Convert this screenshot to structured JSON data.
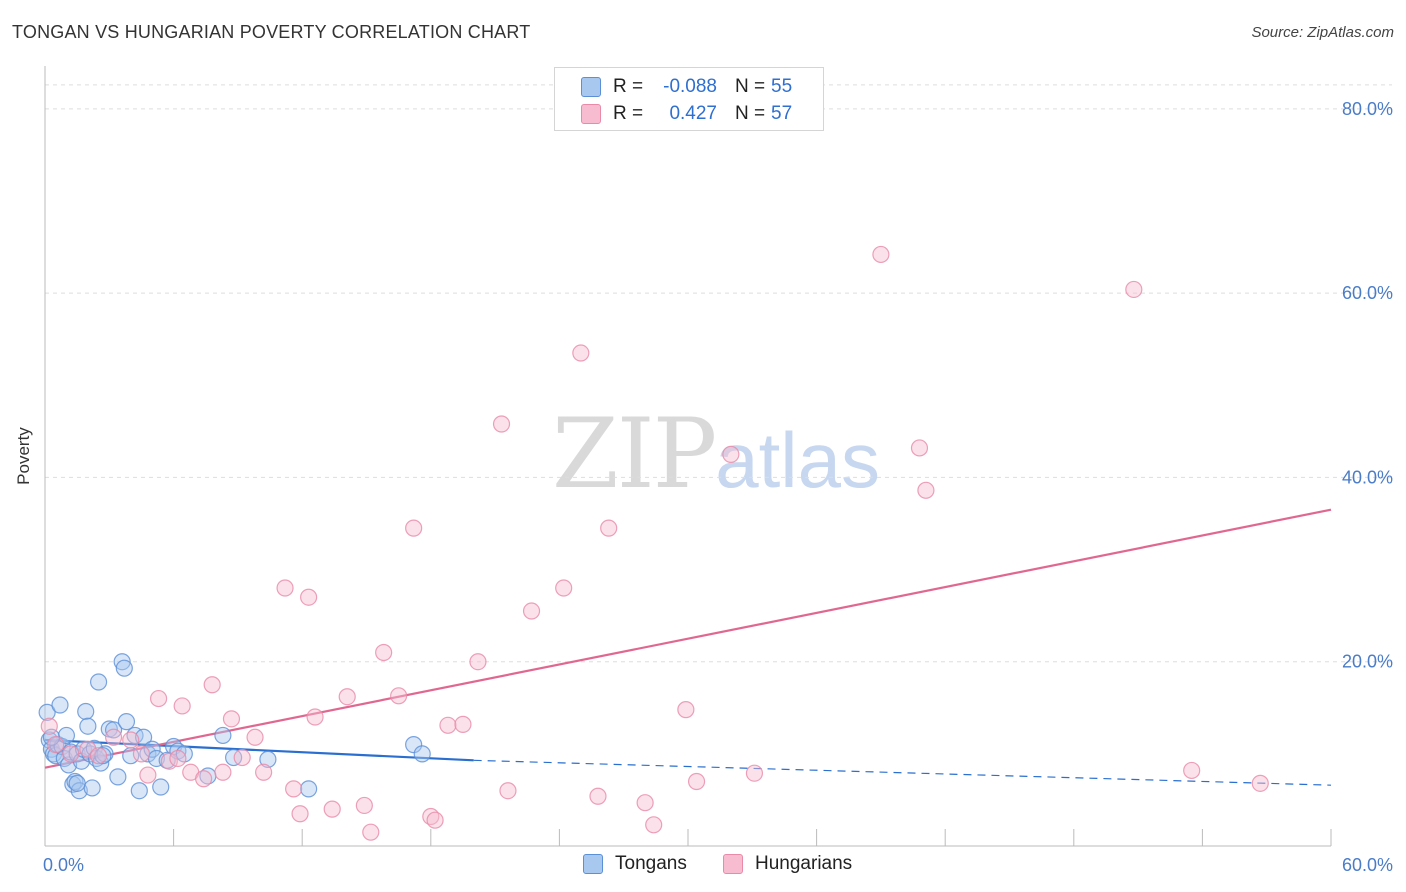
{
  "header": {
    "title": "TONGAN VS HUNGARIAN POVERTY CORRELATION CHART",
    "source": "Source: ZipAtlas.com"
  },
  "legend": {
    "r_label": "R =",
    "n_label": "N =",
    "rows": [
      {
        "name": "Tongans",
        "r": "-0.088",
        "n": "55"
      },
      {
        "name": "Hungarians",
        "r": "0.427",
        "n": "57"
      }
    ]
  },
  "watermark": {
    "zip": "ZIP",
    "atlas": "atlas"
  },
  "colors": {
    "tongans_fill": "#a8c8f0",
    "tongans_stroke": "#5b8fd6",
    "tongans_line": "#2a6fcf",
    "hungarians_fill": "#f7bcd0",
    "hungarians_stroke": "#e88aa8",
    "hungarians_line": "#e06890",
    "axis_text": "#4a7cc7",
    "grid": "#dddddd"
  },
  "chart_data": {
    "type": "scatter",
    "title": "TONGAN VS HUNGARIAN POVERTY CORRELATION CHART",
    "xlabel": "",
    "ylabel": "Poverty",
    "xlim": [
      0,
      60
    ],
    "ylim": [
      0,
      84
    ],
    "x_tick_labels": [
      {
        "value": 0,
        "label": "0.0%"
      },
      {
        "value": 60,
        "label": "60.0%"
      }
    ],
    "y_tick_labels": [
      {
        "value": 20,
        "label": "20.0%"
      },
      {
        "value": 40,
        "label": "40.0%"
      },
      {
        "value": 60,
        "label": "60.0%"
      },
      {
        "value": 80,
        "label": "80.0%"
      }
    ],
    "x_minor_ticks": [
      0,
      6,
      12,
      18,
      24,
      30,
      36,
      42,
      48,
      54,
      60
    ],
    "grid": true,
    "legend_position": "top-center",
    "series": [
      {
        "name": "Tongans",
        "trend": {
          "x0": 0,
          "y0": 11.5,
          "x1": 20,
          "y1": 9.3,
          "dash_to_x": 60,
          "dash_to_y": 6.6
        },
        "points": [
          [
            0.1,
            14.5
          ],
          [
            0.2,
            11.5
          ],
          [
            0.3,
            10.5
          ],
          [
            0.4,
            10.0
          ],
          [
            0.5,
            9.8
          ],
          [
            0.6,
            11.0
          ],
          [
            0.7,
            15.3
          ],
          [
            0.8,
            10.8
          ],
          [
            0.9,
            9.5
          ],
          [
            1.0,
            12.0
          ],
          [
            1.1,
            8.8
          ],
          [
            1.2,
            10.2
          ],
          [
            1.3,
            6.7
          ],
          [
            1.4,
            7.0
          ],
          [
            1.5,
            10.0
          ],
          [
            1.6,
            6.0
          ],
          [
            1.7,
            9.2
          ],
          [
            1.8,
            10.5
          ],
          [
            1.9,
            14.6
          ],
          [
            2.0,
            13.0
          ],
          [
            2.1,
            10.0
          ],
          [
            2.2,
            6.3
          ],
          [
            2.3,
            10.6
          ],
          [
            2.4,
            9.5
          ],
          [
            2.5,
            17.8
          ],
          [
            2.6,
            9.0
          ],
          [
            2.8,
            10.0
          ],
          [
            3.0,
            12.7
          ],
          [
            3.2,
            12.6
          ],
          [
            3.4,
            7.5
          ],
          [
            3.6,
            20.0
          ],
          [
            3.7,
            19.3
          ],
          [
            3.8,
            13.5
          ],
          [
            4.0,
            9.8
          ],
          [
            4.2,
            12.0
          ],
          [
            4.4,
            6.0
          ],
          [
            4.6,
            11.8
          ],
          [
            4.8,
            10.0
          ],
          [
            5.0,
            10.5
          ],
          [
            5.2,
            9.5
          ],
          [
            5.4,
            6.4
          ],
          [
            5.7,
            9.3
          ],
          [
            6.0,
            10.8
          ],
          [
            6.2,
            10.3
          ],
          [
            6.5,
            10.0
          ],
          [
            7.6,
            7.6
          ],
          [
            8.3,
            12.0
          ],
          [
            8.8,
            9.6
          ],
          [
            10.4,
            9.4
          ],
          [
            12.3,
            6.2
          ],
          [
            17.2,
            11.0
          ],
          [
            17.6,
            10.0
          ],
          [
            0.3,
            11.8
          ],
          [
            1.5,
            6.8
          ],
          [
            2.7,
            9.8
          ]
        ]
      },
      {
        "name": "Hungarians",
        "trend": {
          "x0": 0,
          "y0": 8.5,
          "x1": 60,
          "y1": 36.5
        },
        "points": [
          [
            0.2,
            13.0
          ],
          [
            0.5,
            11.0
          ],
          [
            1.2,
            10.0
          ],
          [
            2.0,
            10.5
          ],
          [
            2.5,
            9.8
          ],
          [
            3.2,
            11.8
          ],
          [
            4.0,
            11.5
          ],
          [
            4.5,
            10.0
          ],
          [
            4.8,
            7.7
          ],
          [
            5.3,
            16.0
          ],
          [
            5.8,
            9.2
          ],
          [
            6.2,
            9.5
          ],
          [
            6.4,
            15.2
          ],
          [
            6.8,
            8.0
          ],
          [
            7.4,
            7.3
          ],
          [
            7.8,
            17.5
          ],
          [
            8.3,
            8.0
          ],
          [
            8.7,
            13.8
          ],
          [
            9.2,
            9.6
          ],
          [
            9.8,
            11.8
          ],
          [
            10.2,
            8.0
          ],
          [
            11.2,
            28.0
          ],
          [
            11.6,
            6.2
          ],
          [
            11.9,
            3.5
          ],
          [
            12.3,
            27.0
          ],
          [
            12.6,
            14.0
          ],
          [
            13.4,
            4.0
          ],
          [
            14.1,
            16.2
          ],
          [
            14.9,
            4.4
          ],
          [
            15.2,
            1.5
          ],
          [
            15.8,
            21.0
          ],
          [
            16.5,
            16.3
          ],
          [
            17.2,
            34.5
          ],
          [
            18.0,
            3.2
          ],
          [
            18.2,
            2.8
          ],
          [
            18.8,
            13.1
          ],
          [
            19.5,
            13.2
          ],
          [
            20.2,
            20.0
          ],
          [
            21.3,
            45.8
          ],
          [
            21.6,
            6.0
          ],
          [
            22.7,
            25.5
          ],
          [
            24.2,
            28.0
          ],
          [
            25.0,
            53.5
          ],
          [
            25.8,
            5.4
          ],
          [
            26.3,
            34.5
          ],
          [
            28.0,
            4.7
          ],
          [
            28.4,
            2.3
          ],
          [
            29.9,
            14.8
          ],
          [
            30.4,
            7.0
          ],
          [
            32.0,
            42.5
          ],
          [
            33.1,
            7.9
          ],
          [
            39.0,
            64.2
          ],
          [
            40.8,
            43.2
          ],
          [
            41.1,
            38.6
          ],
          [
            50.8,
            60.4
          ],
          [
            53.5,
            8.2
          ],
          [
            56.7,
            6.8
          ]
        ]
      }
    ]
  }
}
